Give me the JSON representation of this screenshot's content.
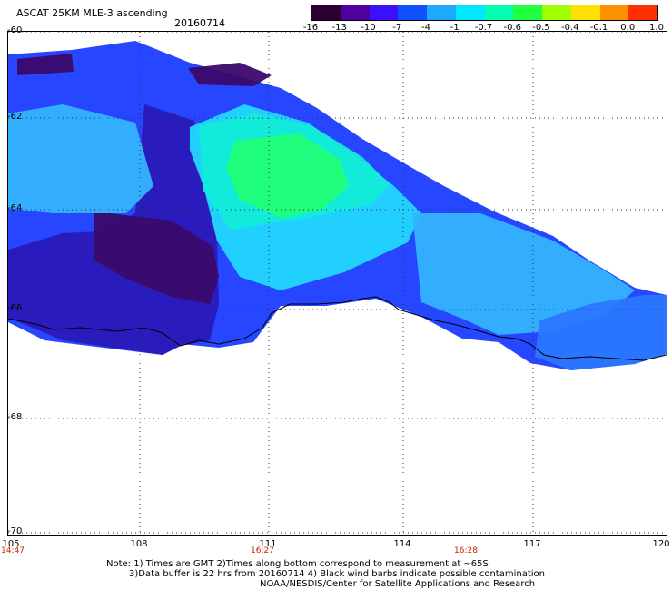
{
  "title": "ASCAT 25KM MLE-3 ascending",
  "date": "20160714",
  "colorbar": {
    "labels": [
      "-16",
      "-13",
      "-10",
      "-7",
      "-4",
      "-1",
      "-0.7",
      "-0.6",
      "-0.5",
      "-0.4",
      "-0.1",
      "0.0",
      "1.0"
    ],
    "colors": [
      "#2a0030",
      "#5000a0",
      "#3a10ff",
      "#1050ff",
      "#20a8ff",
      "#00e8ff",
      "#00ffb0",
      "#20ff40",
      "#a0ff00",
      "#ffe000",
      "#ff9000",
      "#ff3000"
    ]
  },
  "axes": {
    "y_labels": [
      "-60",
      "-62",
      "-64",
      "-66",
      "-68",
      "-70"
    ],
    "x_labels": [
      "105",
      "108",
      "111",
      "114",
      "117",
      "120"
    ],
    "time_labels": [
      "14:47",
      "16:27",
      "16:28"
    ]
  },
  "notes": {
    "line1": "Note: 1) Times are GMT 2)Times along bottom correspond to measurement at ~65S",
    "line2": "3)Data buffer is 22 hrs from 20160714 4) Black wind barbs indicate possible contamination",
    "line3": "NOAA/NESDIS/Center for Satellite Applications and Research"
  },
  "map_colors": {
    "deep_purple": "#3a0a6a",
    "purple": "#2a1ab8",
    "blue": "#1a3cff",
    "mid_blue": "#2a78ff",
    "light_blue": "#34b4ff",
    "cyan": "#22d8ff",
    "aqua": "#12ecd8",
    "green": "#22ff78",
    "coastline": "#000000",
    "grid": "#333333"
  }
}
